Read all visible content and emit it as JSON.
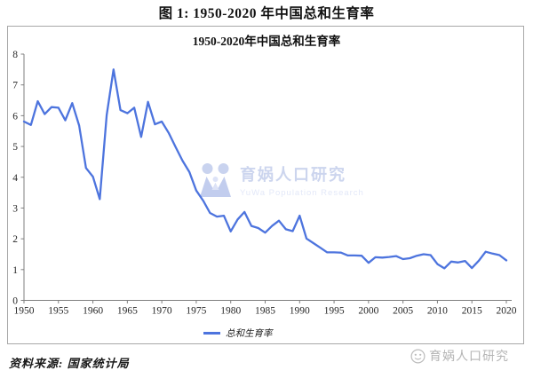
{
  "page": {
    "figure_title": "图 1: 1950-2020 年中国总和生育率",
    "source_note": "资料来源: 国家统计局"
  },
  "chart": {
    "title": "1950-2020年中国总和生育率",
    "legend_label": "总和生育率",
    "line_color": "#4d74de"
  },
  "watermark": {
    "center_name": "育娲人口研究",
    "center_subtitle": "YuWa Population Research",
    "corner_name": "育娲人口研究",
    "color": "#c9d3ef"
  },
  "chart_data": {
    "type": "line",
    "title": "1950-2020年中国总和生育率",
    "xlabel": "",
    "ylabel": "",
    "ylim": [
      0,
      8
    ],
    "xlim": [
      1950,
      2020
    ],
    "grid": false,
    "legend_position": "bottom",
    "x_ticks": [
      1950,
      1955,
      1960,
      1965,
      1970,
      1975,
      1980,
      1985,
      1990,
      1995,
      2000,
      2005,
      2010,
      2015,
      2020
    ],
    "y_ticks": [
      0,
      1,
      2,
      3,
      4,
      5,
      6,
      7,
      8
    ],
    "x": [
      1950,
      1951,
      1952,
      1953,
      1954,
      1955,
      1956,
      1957,
      1958,
      1959,
      1960,
      1961,
      1962,
      1963,
      1964,
      1965,
      1966,
      1967,
      1968,
      1969,
      1970,
      1971,
      1972,
      1973,
      1974,
      1975,
      1976,
      1977,
      1978,
      1979,
      1980,
      1981,
      1982,
      1983,
      1984,
      1985,
      1986,
      1987,
      1988,
      1989,
      1990,
      1991,
      1992,
      1993,
      1994,
      1995,
      1996,
      1997,
      1998,
      1999,
      2000,
      2001,
      2002,
      2003,
      2004,
      2005,
      2006,
      2007,
      2008,
      2009,
      2010,
      2011,
      2012,
      2013,
      2014,
      2015,
      2016,
      2017,
      2018,
      2019,
      2020
    ],
    "series": [
      {
        "name": "总和生育率",
        "values": [
          5.81,
          5.7,
          6.47,
          6.05,
          6.28,
          6.26,
          5.85,
          6.41,
          5.68,
          4.3,
          4.02,
          3.29,
          6.02,
          7.5,
          6.18,
          6.08,
          6.26,
          5.31,
          6.45,
          5.72,
          5.81,
          5.44,
          4.98,
          4.54,
          4.17,
          3.57,
          3.24,
          2.84,
          2.72,
          2.75,
          2.24,
          2.63,
          2.87,
          2.42,
          2.35,
          2.2,
          2.42,
          2.59,
          2.31,
          2.25,
          2.75,
          2.01,
          1.86,
          1.71,
          1.56,
          1.56,
          1.55,
          1.46,
          1.46,
          1.45,
          1.22,
          1.4,
          1.39,
          1.41,
          1.44,
          1.34,
          1.37,
          1.45,
          1.5,
          1.47,
          1.18,
          1.04,
          1.26,
          1.23,
          1.28,
          1.05,
          1.29,
          1.58,
          1.52,
          1.47,
          1.3
        ]
      }
    ]
  }
}
